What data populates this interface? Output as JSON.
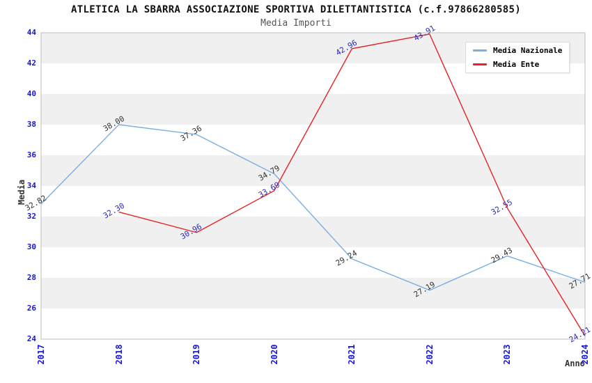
{
  "chart_data": {
    "type": "line",
    "title": "ATLETICA LA SBARRA ASSOCIAZIONE SPORTIVA DILETTANTISTICA (c.f.97866280585)",
    "subtitle": "Media Importi",
    "xlabel": "Anno",
    "ylabel": "Media",
    "categories": [
      "2017",
      "2018",
      "2019",
      "2020",
      "2021",
      "2022",
      "2023",
      "2024"
    ],
    "series": [
      {
        "name": "Media Nazionale",
        "color": "#7CADE3",
        "label_color": "#333333",
        "values": [
          32.82,
          38.0,
          37.36,
          34.79,
          29.24,
          27.19,
          29.43,
          27.71
        ]
      },
      {
        "name": "Media Ente",
        "color": "#E62222",
        "label_color": "#2B2BB8",
        "values": [
          null,
          32.3,
          30.96,
          33.69,
          42.96,
          43.91,
          32.55,
          24.21
        ]
      }
    ],
    "ylim": [
      24,
      44
    ],
    "ytick_step": 2,
    "value_labels": true,
    "value_label_decimals": 2,
    "grid": "horizontal-bands",
    "band_colors": [
      "#FFFFFF",
      "#F0F0F0"
    ],
    "plot_border_color": "#BDBDBD",
    "tick_label_color": "#1515DB",
    "legend_position": "top-right"
  }
}
